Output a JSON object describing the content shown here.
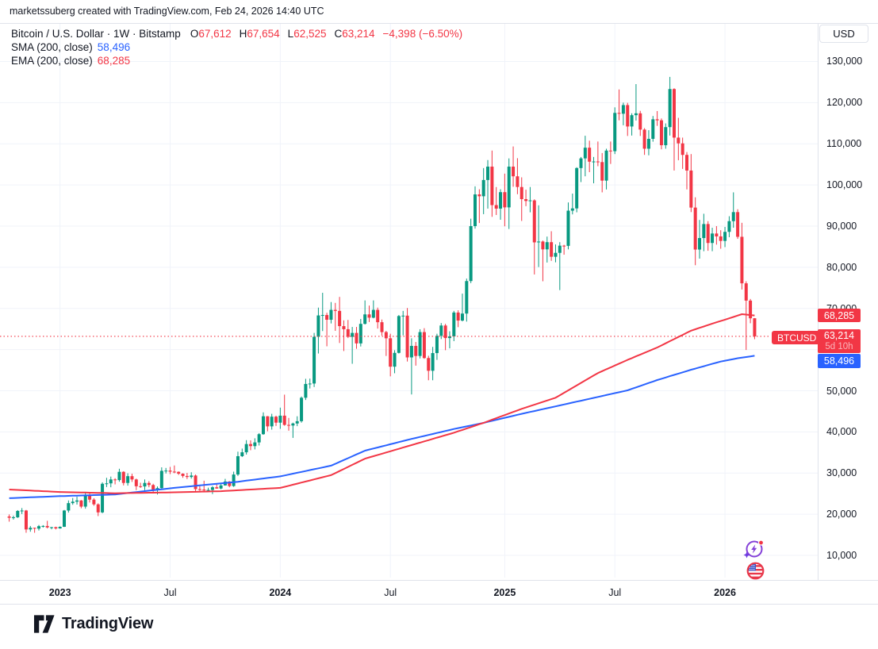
{
  "header": {
    "attribution": "marketssuberg created with TradingView.com, Feb 24, 2026 14:40 UTC"
  },
  "legend": {
    "symbol_title": "Bitcoin / U.S. Dollar · 1W · Bitstamp",
    "o_label": "O",
    "o_value": "67,612",
    "h_label": "H",
    "h_value": "67,654",
    "l_label": "L",
    "l_value": "62,525",
    "c_label": "C",
    "c_value": "63,214",
    "change": "−4,398 (−6.50%)",
    "sma_label": "SMA (200, close)",
    "sma_value": "58,496",
    "ema_label": "EMA (200, close)",
    "ema_value": "68,285"
  },
  "price_axis": {
    "currency_button": "USD",
    "labels": [
      {
        "v": 130000,
        "label": "130,000"
      },
      {
        "v": 120000,
        "label": "120,000"
      },
      {
        "v": 110000,
        "label": "110,000"
      },
      {
        "v": 100000,
        "label": "100,000"
      },
      {
        "v": 90000,
        "label": "90,000"
      },
      {
        "v": 80000,
        "label": "80,000"
      },
      {
        "v": 70000,
        "label": "70,000"
      },
      {
        "v": 50000,
        "label": "50,000"
      },
      {
        "v": 40000,
        "label": "40,000"
      },
      {
        "v": 30000,
        "label": "30,000"
      },
      {
        "v": 20000,
        "label": "20,000"
      },
      {
        "v": 10000,
        "label": "10,000"
      }
    ],
    "badges": {
      "ema": "68,285",
      "last": "63,214",
      "countdown": "5d 10h",
      "sma": "58,496"
    }
  },
  "time_axis": {
    "ticks": [
      {
        "i": 12,
        "label": "2023",
        "bold": true
      },
      {
        "i": 38,
        "label": "Jul",
        "bold": false
      },
      {
        "i": 64,
        "label": "2024",
        "bold": true
      },
      {
        "i": 90,
        "label": "Jul",
        "bold": false
      },
      {
        "i": 117,
        "label": "2025",
        "bold": true
      },
      {
        "i": 143,
        "label": "Jul",
        "bold": false
      },
      {
        "i": 169,
        "label": "2026",
        "bold": true
      }
    ]
  },
  "price_line_label": "BTCUSD",
  "logo": {
    "wordmark": "TradingView"
  },
  "colors": {
    "up": "#089981",
    "down": "#f23645",
    "sma": "#2962ff",
    "ema": "#f23645",
    "grid": "#f0f3fa",
    "text": "#131722",
    "axis_border": "#e0e3eb",
    "badge_last": "#f23645",
    "badge_sma": "#2962ff"
  },
  "chart_data": {
    "type": "candlestick",
    "title": "Bitcoin / U.S. Dollar",
    "symbol": "BTCUSD",
    "exchange": "Bitstamp",
    "interval": "1W",
    "first_week": "2022-10-10",
    "y_axis": {
      "min": 10000,
      "max": 130000,
      "step": 10000,
      "currency": "USD"
    },
    "last": {
      "open": 67612,
      "high": 67654,
      "low": 62525,
      "close": 63214,
      "change": -4398,
      "change_pct": -6.5,
      "bar_time_left": "5d 10h"
    },
    "indicators": [
      {
        "name": "SMA",
        "args": "(200, close)",
        "last": 58496,
        "color": "#2962ff"
      },
      {
        "name": "EMA",
        "args": "(200, close)",
        "last": 68285,
        "color": "#f23645"
      }
    ],
    "candles": [
      [
        19450,
        19950,
        18200,
        19150
      ],
      [
        19150,
        19650,
        18700,
        19250
      ],
      [
        19250,
        21000,
        19100,
        20800
      ],
      [
        20800,
        21500,
        20050,
        20900
      ],
      [
        20900,
        21050,
        15500,
        16300
      ],
      [
        16300,
        17150,
        15750,
        16700
      ],
      [
        16700,
        16750,
        15500,
        16500
      ],
      [
        16500,
        17400,
        16050,
        17100
      ],
      [
        17100,
        17350,
        16750,
        17150
      ],
      [
        17150,
        18400,
        16550,
        16800
      ],
      [
        16800,
        16950,
        16350,
        16850
      ],
      [
        16850,
        16980,
        16300,
        16550
      ],
      [
        16550,
        17050,
        16500,
        16950
      ],
      [
        16950,
        21050,
        16900,
        20900
      ],
      [
        20900,
        23350,
        20400,
        22700
      ],
      [
        22700,
        23950,
        22300,
        23050
      ],
      [
        23050,
        24250,
        22350,
        23350
      ],
      [
        23350,
        23450,
        21450,
        21850
      ],
      [
        21850,
        25250,
        21350,
        24650
      ],
      [
        24650,
        25300,
        22850,
        23550
      ],
      [
        23550,
        23900,
        22050,
        22400
      ],
      [
        22400,
        22650,
        19550,
        20450
      ],
      [
        20450,
        27750,
        20250,
        27400
      ],
      [
        27400,
        28850,
        26600,
        27500
      ],
      [
        27500,
        29150,
        26550,
        28450
      ],
      [
        28450,
        28750,
        27250,
        28300
      ],
      [
        28300,
        31050,
        27900,
        30300
      ],
      [
        30300,
        30450,
        27000,
        27600
      ],
      [
        27600,
        29950,
        26950,
        29250
      ],
      [
        29250,
        29850,
        27850,
        28450
      ],
      [
        28450,
        28650,
        25850,
        26800
      ],
      [
        26800,
        27650,
        26400,
        26750
      ],
      [
        26750,
        28450,
        25850,
        27600
      ],
      [
        27600,
        28050,
        26550,
        27100
      ],
      [
        27100,
        27400,
        25350,
        25900
      ],
      [
        25900,
        26750,
        24800,
        26350
      ],
      [
        26350,
        31400,
        26250,
        30550
      ],
      [
        30550,
        31250,
        29900,
        30600
      ],
      [
        30600,
        31500,
        29750,
        30350
      ],
      [
        30350,
        31850,
        29950,
        30300
      ],
      [
        30300,
        30400,
        29550,
        29850
      ],
      [
        29850,
        29950,
        28850,
        29300
      ],
      [
        29300,
        30050,
        28550,
        29050
      ],
      [
        29050,
        30200,
        28650,
        29400
      ],
      [
        29400,
        29650,
        25350,
        26100
      ],
      [
        26100,
        26850,
        25700,
        26000
      ],
      [
        26000,
        28150,
        25550,
        25850
      ],
      [
        25850,
        26450,
        25350,
        25900
      ],
      [
        25900,
        26850,
        24900,
        26550
      ],
      [
        26550,
        27500,
        26200,
        26250
      ],
      [
        26250,
        27350,
        26050,
        27000
      ],
      [
        27000,
        28600,
        26950,
        27950
      ],
      [
        27950,
        28050,
        26550,
        26850
      ],
      [
        26850,
        30350,
        26650,
        29650
      ],
      [
        29650,
        35200,
        29300,
        34100
      ],
      [
        34100,
        35950,
        33900,
        35050
      ],
      [
        35050,
        38000,
        34500,
        37050
      ],
      [
        37050,
        37950,
        35550,
        36550
      ],
      [
        36550,
        38450,
        35750,
        37450
      ],
      [
        37450,
        39700,
        36700,
        39450
      ],
      [
        39450,
        44750,
        39300,
        43800
      ],
      [
        43800,
        43850,
        40150,
        41350
      ],
      [
        41350,
        44400,
        40550,
        43700
      ],
      [
        43700,
        43950,
        41450,
        42250
      ],
      [
        42250,
        45900,
        40750,
        43950
      ],
      [
        43950,
        49050,
        41500,
        41700
      ],
      [
        41700,
        43400,
        40300,
        41550
      ],
      [
        41550,
        42250,
        38550,
        42050
      ],
      [
        42050,
        43800,
        41400,
        42600
      ],
      [
        42600,
        48600,
        42250,
        48300
      ],
      [
        48300,
        52900,
        47750,
        51650
      ],
      [
        51650,
        52950,
        50550,
        51750
      ],
      [
        51750,
        64050,
        50900,
        63100
      ],
      [
        63100,
        70200,
        59050,
        68300
      ],
      [
        68300,
        73800,
        64500,
        68400
      ],
      [
        68400,
        68950,
        60800,
        67250
      ],
      [
        67250,
        71550,
        66350,
        69650
      ],
      [
        69650,
        71350,
        64550,
        69400
      ],
      [
        69400,
        72800,
        61600,
        65700
      ],
      [
        65700,
        67100,
        59650,
        64950
      ],
      [
        64950,
        67200,
        62800,
        63100
      ],
      [
        63100,
        65500,
        56550,
        64050
      ],
      [
        64050,
        65500,
        60200,
        61500
      ],
      [
        61500,
        67450,
        60750,
        66250
      ],
      [
        66250,
        71950,
        66100,
        68550
      ],
      [
        68550,
        70700,
        66700,
        67750
      ],
      [
        67750,
        71950,
        67600,
        69650
      ],
      [
        69650,
        70200,
        65100,
        66650
      ],
      [
        66650,
        67300,
        63400,
        64250
      ],
      [
        64250,
        64550,
        58450,
        62750
      ],
      [
        62750,
        63850,
        53500,
        55850
      ],
      [
        55850,
        59850,
        54250,
        59200
      ],
      [
        59200,
        68400,
        59050,
        68150
      ],
      [
        68150,
        69400,
        63450,
        68250
      ],
      [
        68250,
        70100,
        57100,
        58100
      ],
      [
        58100,
        62750,
        49100,
        60900
      ],
      [
        60900,
        61850,
        56100,
        58450
      ],
      [
        58450,
        64950,
        57850,
        64250
      ],
      [
        64250,
        65200,
        57750,
        57950
      ],
      [
        57950,
        58500,
        52550,
        54850
      ],
      [
        54850,
        60650,
        52550,
        59150
      ],
      [
        59150,
        63850,
        57500,
        63350
      ],
      [
        63350,
        66450,
        62550,
        65850
      ],
      [
        65850,
        66250,
        59850,
        62800
      ],
      [
        62800,
        64450,
        60300,
        63200
      ],
      [
        63200,
        69400,
        62050,
        69000
      ],
      [
        69000,
        69550,
        65450,
        67050
      ],
      [
        67050,
        73600,
        66850,
        68750
      ],
      [
        68750,
        77250,
        66800,
        76650
      ],
      [
        76650,
        91800,
        76150,
        90000
      ],
      [
        90000,
        99650,
        89400,
        97700
      ],
      [
        97700,
        98950,
        90750,
        97250
      ],
      [
        97250,
        104100,
        92900,
        101200
      ],
      [
        101200,
        106050,
        94250,
        104450
      ],
      [
        104450,
        108350,
        92250,
        95100
      ],
      [
        95100,
        99500,
        92700,
        94250
      ],
      [
        94250,
        98950,
        91550,
        98250
      ],
      [
        98250,
        102750,
        89950,
        94550
      ],
      [
        94550,
        106450,
        89300,
        104450
      ],
      [
        104450,
        109350,
        99550,
        102100
      ],
      [
        102100,
        106500,
        97750,
        99500
      ],
      [
        99500,
        101850,
        91250,
        96550
      ],
      [
        96550,
        98850,
        94850,
        96100
      ],
      [
        96100,
        99500,
        93350,
        96250
      ],
      [
        96250,
        96500,
        78250,
        86050
      ],
      [
        86050,
        95050,
        80050,
        86250
      ],
      [
        86250,
        86500,
        76600,
        84350
      ],
      [
        84350,
        87450,
        81150,
        86100
      ],
      [
        86100,
        88750,
        81550,
        82550
      ],
      [
        82550,
        85550,
        81200,
        83500
      ],
      [
        83500,
        86100,
        74450,
        85250
      ],
      [
        85250,
        85450,
        83050,
        85200
      ],
      [
        85200,
        95750,
        84350,
        93750
      ],
      [
        93750,
        97900,
        92850,
        94300
      ],
      [
        94300,
        104300,
        93350,
        104100
      ],
      [
        104100,
        106800,
        100700,
        106450
      ],
      [
        106450,
        111950,
        102100,
        109050
      ],
      [
        109050,
        110750,
        103100,
        105650
      ],
      [
        105650,
        106800,
        100400,
        105700
      ],
      [
        105700,
        110550,
        104550,
        105550
      ],
      [
        105550,
        107750,
        98200,
        101050
      ],
      [
        101050,
        108800,
        98900,
        108350
      ],
      [
        108350,
        110550,
        105100,
        108200
      ],
      [
        108200,
        118850,
        107500,
        117500
      ],
      [
        117500,
        123200,
        115700,
        117300
      ],
      [
        117300,
        120000,
        114500,
        119400
      ],
      [
        119400,
        119950,
        111900,
        114200
      ],
      [
        114200,
        117400,
        112000,
        116950
      ],
      [
        116950,
        124500,
        115650,
        117400
      ],
      [
        117400,
        118000,
        111900,
        113450
      ],
      [
        113450,
        113800,
        107300,
        108800
      ],
      [
        108800,
        113300,
        107200,
        111200
      ],
      [
        111200,
        116750,
        110500,
        115950
      ],
      [
        115950,
        117950,
        114350,
        115700
      ],
      [
        115700,
        116150,
        108650,
        109650
      ],
      [
        109650,
        114950,
        108800,
        114050
      ],
      [
        114050,
        126250,
        112000,
        123300
      ],
      [
        123300,
        123500,
        103500,
        111500
      ],
      [
        111500,
        116300,
        106000,
        110100
      ],
      [
        110100,
        111500,
        103900,
        107300
      ],
      [
        107300,
        108000,
        98900,
        103500
      ],
      [
        103500,
        107500,
        93400,
        94500
      ],
      [
        94500,
        97000,
        80500,
        84300
      ],
      [
        84300,
        91500,
        82100,
        87100
      ],
      [
        87100,
        93000,
        83900,
        90500
      ],
      [
        90500,
        91200,
        84000,
        85900
      ],
      [
        85900,
        89600,
        83900,
        88200
      ],
      [
        88200,
        90000,
        85500,
        87500
      ],
      [
        87500,
        89000,
        84500,
        86400
      ],
      [
        86400,
        89800,
        84900,
        88600
      ],
      [
        88600,
        92400,
        87300,
        91200
      ],
      [
        91200,
        98200,
        89600,
        93400
      ],
      [
        93400,
        94100,
        86900,
        87400
      ],
      [
        87400,
        90800,
        74600,
        76100
      ],
      [
        76100,
        76600,
        59900,
        71900
      ],
      [
        71900,
        72300,
        66400,
        67600
      ],
      [
        67612,
        67654,
        62525,
        63214
      ]
    ],
    "sma_points": [
      [
        0,
        23900
      ],
      [
        12,
        24400
      ],
      [
        25,
        24800
      ],
      [
        38,
        26300
      ],
      [
        54,
        27900
      ],
      [
        64,
        29200
      ],
      [
        76,
        31800
      ],
      [
        84,
        35450
      ],
      [
        95,
        38300
      ],
      [
        105,
        40700
      ],
      [
        112,
        42200
      ],
      [
        121,
        44400
      ],
      [
        129,
        46200
      ],
      [
        139,
        48500
      ],
      [
        146,
        50100
      ],
      [
        153,
        52600
      ],
      [
        161,
        55100
      ],
      [
        168,
        57100
      ],
      [
        172,
        57900
      ],
      [
        176,
        58496
      ]
    ],
    "ema_points": [
      [
        0,
        26000
      ],
      [
        12,
        25400
      ],
      [
        25,
        25100
      ],
      [
        38,
        25300
      ],
      [
        50,
        25600
      ],
      [
        64,
        26400
      ],
      [
        76,
        29500
      ],
      [
        84,
        33500
      ],
      [
        95,
        36800
      ],
      [
        105,
        39800
      ],
      [
        112,
        42200
      ],
      [
        121,
        45600
      ],
      [
        129,
        48300
      ],
      [
        139,
        54300
      ],
      [
        146,
        57500
      ],
      [
        153,
        60500
      ],
      [
        161,
        64600
      ],
      [
        166,
        66300
      ],
      [
        170,
        67600
      ],
      [
        173,
        68600
      ],
      [
        176,
        68285
      ]
    ]
  }
}
